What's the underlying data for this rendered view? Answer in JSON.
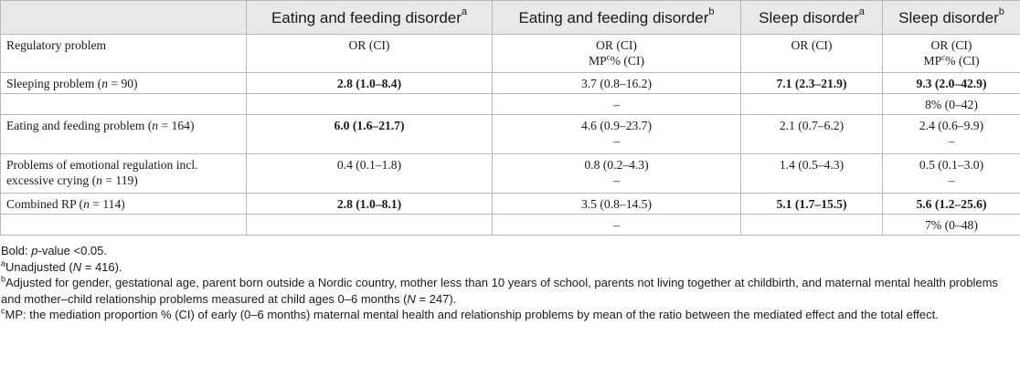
{
  "table": {
    "headers": [
      {
        "label": "",
        "sup": ""
      },
      {
        "label": "Eating and feeding disorder",
        "sup": "a"
      },
      {
        "label": "Eating and feeding disorder",
        "sup": "b"
      },
      {
        "label": "Sleep disorder",
        "sup": "a"
      },
      {
        "label": "Sleep disorder",
        "sup": "b"
      }
    ],
    "subheader": {
      "label": "Regulatory problem",
      "or_ci": "OR (CI)",
      "mp_prefix": "MP",
      "mp_sup": "c",
      "mp_suffix": "% (CI)"
    },
    "rows": [
      {
        "label_main": "Sleeping problem (",
        "n_eq": "n",
        "label_tail": " = 90)",
        "c1": "2.8 (1.0–8.4)",
        "c2": "3.7 (0.8–16.2)",
        "c3": "7.1 (2.3–21.9)",
        "c4": "9.3 (2.0–42.9)",
        "mp2": "–",
        "mp4": "8%  (0–42)"
      },
      {
        "label_main": "Eating and feeding problem (",
        "n_eq": "n",
        "label_tail": " = 164)",
        "c1": "6.0 (1.6–21.7)",
        "c2": "4.6 (0.9–23.7)",
        "c3": "2.1 (0.7–6.2)",
        "c4": "2.4 (0.6–9.9)",
        "mp2": "–",
        "mp4": "–"
      },
      {
        "label_line1": "Problems of emotional regulation incl.",
        "label_main": "excessive crying (",
        "n_eq": "n",
        "label_tail": " = 119)",
        "c1": "0.4 (0.1–1.8)",
        "c2": "0.8 (0.2–4.3)",
        "c3": "1.4 (0.5–4.3)",
        "c4": "0.5 (0.1–3.0)",
        "mp2": "–",
        "mp4": "–"
      },
      {
        "label_main": "Combined RP (",
        "n_eq": "n",
        "label_tail": " = 114)",
        "c1": "2.8 (1.0–8.1)",
        "c2": "3.5 (0.8–14.5)",
        "c3": "5.1 (1.7–15.5)",
        "c4": "5.6 (1.2–25.6)",
        "mp2": "–",
        "mp4": "7%  (0–48)"
      }
    ]
  },
  "footnotes": {
    "bold_prefix": "Bold: ",
    "bold_p": "p",
    "bold_rest": "-value <0.05.",
    "a_sup": "a",
    "a_text": "Unadjusted (",
    "a_n": "N",
    "a_tail": " = 416).",
    "b_sup": "b",
    "b_text": "Adjusted for gender, gestational age, parent born outside a Nordic country, mother less than 10 years of school, parents not living together at childbirth, and maternal mental health problems and mother–child relationship problems measured at child ages 0–6 months (",
    "b_n": "N",
    "b_tail": " = 247).",
    "c_sup": "c",
    "c_text": "MP: the mediation proportion % (CI) of early (0–6 months) maternal mental health and relationship problems by mean of the ratio between the mediated effect and the total effect."
  }
}
